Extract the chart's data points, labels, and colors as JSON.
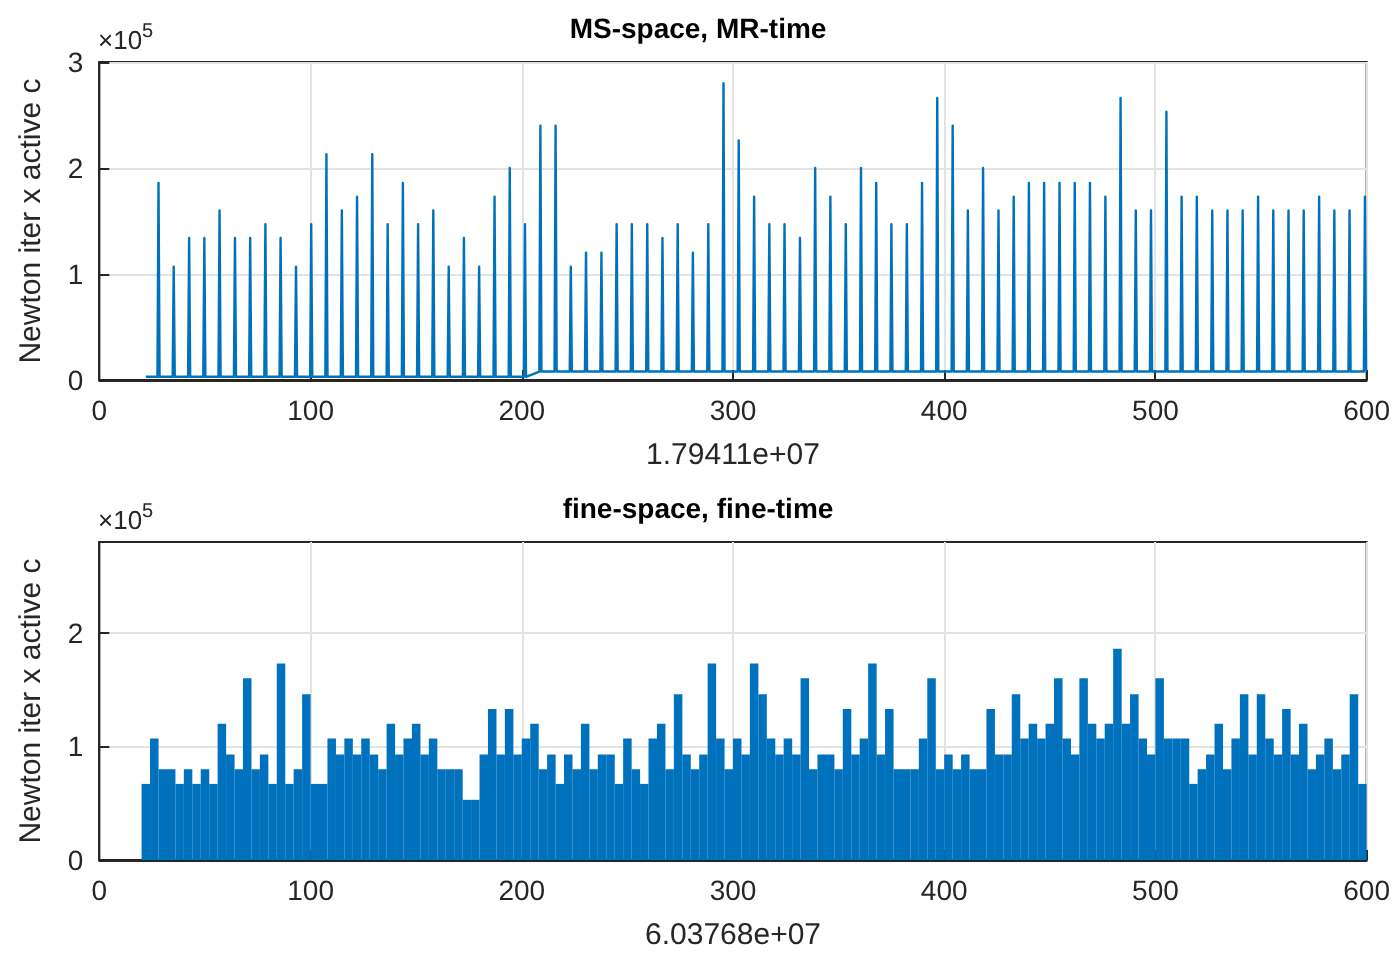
{
  "chart_data": [
    {
      "type": "line",
      "title": "MS-space, MR-time",
      "xlabel": "1.79411e+07",
      "ylabel": "Newton iter x active c",
      "annotations": [
        "×10$^{5}$"
      ],
      "color": "#0072bd",
      "marker": "none",
      "grid": true,
      "xlim": [
        0,
        600
      ],
      "xticks": [
        0,
        100,
        200,
        300,
        400,
        500,
        600
      ],
      "ylim": [
        0,
        3
      ],
      "yticks": [
        0,
        1,
        2,
        3
      ],
      "x": [
        22,
        27.5,
        28,
        28.5,
        34.7,
        35.2,
        35.7,
        42,
        42.5,
        43,
        49.2,
        49.7,
        50.2,
        56.4,
        56.9,
        57.4,
        63.7,
        64.2,
        64.7,
        70.9,
        71.4,
        71.9,
        78.1,
        78.6,
        79.1,
        85.3,
        85.8,
        86.3,
        92.6,
        93.1,
        93.6,
        99.8,
        100.3,
        100.8,
        107,
        107.5,
        108,
        114.3,
        114.8,
        115.3,
        121.5,
        122,
        122.5,
        128.7,
        129.2,
        129.7,
        136,
        136.5,
        137,
        143.2,
        143.7,
        144.2,
        150.4,
        150.9,
        151.4,
        157.6,
        158.1,
        158.6,
        164.9,
        165.4,
        165.9,
        172.1,
        172.6,
        173.1,
        179.3,
        179.8,
        180.3,
        186.6,
        187.1,
        187.6,
        193.8,
        194.3,
        194.8,
        201,
        201.5,
        202,
        208.3,
        208.8,
        209.3,
        215.5,
        216,
        216.5,
        222.7,
        223.2,
        223.7,
        229.9,
        230.4,
        230.9,
        237.2,
        237.7,
        238.2,
        244.4,
        244.9,
        245.4,
        251.6,
        252.1,
        252.6,
        258.9,
        259.4,
        259.9,
        266.1,
        266.6,
        267.1,
        273.3,
        273.8,
        274.3,
        280.5,
        281,
        281.5,
        287.8,
        288.3,
        288.8,
        295,
        295.5,
        296,
        302.2,
        302.7,
        303.2,
        309.5,
        310,
        310.5,
        316.7,
        317.2,
        317.7,
        323.9,
        324.4,
        324.9,
        331.2,
        331.7,
        332.2,
        338.4,
        338.9,
        339.4,
        345.6,
        346.1,
        346.6,
        352.9,
        353.4,
        353.9,
        360.1,
        360.6,
        361.1,
        367.3,
        367.8,
        368.3,
        374.5,
        375,
        375.5,
        381.8,
        382.3,
        382.8,
        389,
        389.5,
        390,
        396.2,
        396.7,
        397.2,
        403.5,
        404,
        404.5,
        410.7,
        411.2,
        411.7,
        417.9,
        418.4,
        418.9,
        425.2,
        425.7,
        426.2,
        432.4,
        432.9,
        433.4,
        439.6,
        440.1,
        440.6,
        446.8,
        447.3,
        447.8,
        454.1,
        454.6,
        455.1,
        461.3,
        461.8,
        462.3,
        468.5,
        469,
        469.5,
        475.8,
        476.3,
        476.8,
        483,
        483.5,
        484,
        490.2,
        490.7,
        491.2,
        497.4,
        497.9,
        498.4,
        504.7,
        505.2,
        505.7,
        511.9,
        512.4,
        512.9,
        519.1,
        519.6,
        520.1,
        526.4,
        526.9,
        527.4,
        533.6,
        534.1,
        534.6,
        540.8,
        541.3,
        541.8,
        548.1,
        548.6,
        549.1,
        555.3,
        555.8,
        556.3,
        562.5,
        563,
        563.5,
        569.7,
        570.2,
        570.7,
        577,
        577.5,
        578,
        584.2,
        584.7,
        585.2,
        591.4,
        591.9,
        592.4,
        598.7,
        599.2,
        599.7
      ],
      "values": [
        0.03,
        0.03,
        1.86,
        0.03,
        0.03,
        1.07,
        0.03,
        0.03,
        1.34,
        0.03,
        0.03,
        1.34,
        0.03,
        0.03,
        1.6,
        0.03,
        0.03,
        1.34,
        0.03,
        0.03,
        1.34,
        0.03,
        0.03,
        1.47,
        0.03,
        0.03,
        1.34,
        0.03,
        0.03,
        1.07,
        0.03,
        0.03,
        1.47,
        0.03,
        0.03,
        2.13,
        0.03,
        0.03,
        1.6,
        0.03,
        0.03,
        1.73,
        0.03,
        0.03,
        2.13,
        0.03,
        0.03,
        1.47,
        0.03,
        0.03,
        1.86,
        0.03,
        0.03,
        1.47,
        0.03,
        0.03,
        1.6,
        0.03,
        0.03,
        1.07,
        0.03,
        0.03,
        1.34,
        0.03,
        0.03,
        1.07,
        0.03,
        0.03,
        1.73,
        0.03,
        0.03,
        2.0,
        0.03,
        0.03,
        1.47,
        0.03,
        0.08,
        2.4,
        0.08,
        0.08,
        2.4,
        0.08,
        0.08,
        1.07,
        0.08,
        0.08,
        1.2,
        0.08,
        0.08,
        1.2,
        0.08,
        0.08,
        1.47,
        0.08,
        0.08,
        1.47,
        0.08,
        0.08,
        1.47,
        0.08,
        0.08,
        1.34,
        0.08,
        0.08,
        1.47,
        0.08,
        0.08,
        1.2,
        0.08,
        0.08,
        1.47,
        0.08,
        0.08,
        2.8,
        0.08,
        0.08,
        2.26,
        0.08,
        0.08,
        1.73,
        0.08,
        0.08,
        1.47,
        0.08,
        0.08,
        1.47,
        0.08,
        0.08,
        1.34,
        0.08,
        0.08,
        2.0,
        0.08,
        0.08,
        1.73,
        0.08,
        0.08,
        1.47,
        0.08,
        0.08,
        2.0,
        0.08,
        0.08,
        1.86,
        0.08,
        0.08,
        1.47,
        0.08,
        0.08,
        1.47,
        0.08,
        0.08,
        1.86,
        0.08,
        0.08,
        2.66,
        0.08,
        0.08,
        2.4,
        0.08,
        0.08,
        1.6,
        0.08,
        0.08,
        2.0,
        0.08,
        0.08,
        1.6,
        0.08,
        0.08,
        1.73,
        0.08,
        0.08,
        1.86,
        0.08,
        0.08,
        1.86,
        0.08,
        0.08,
        1.86,
        0.08,
        0.08,
        1.86,
        0.08,
        0.08,
        1.86,
        0.08,
        0.08,
        1.73,
        0.08,
        0.08,
        2.66,
        0.08,
        0.08,
        1.6,
        0.08,
        0.08,
        1.6,
        0.08,
        0.08,
        2.53,
        0.08,
        0.08,
        1.73,
        0.08,
        0.08,
        1.73,
        0.08,
        0.08,
        1.6,
        0.08,
        0.08,
        1.6,
        0.08,
        0.08,
        1.6,
        0.08,
        0.08,
        1.73,
        0.08,
        0.08,
        1.6,
        0.08,
        0.08,
        1.6,
        0.08,
        0.08,
        1.6,
        0.08,
        0.08,
        1.73,
        0.08,
        0.08,
        1.6,
        0.08,
        0.08,
        1.6,
        0.08,
        0.08,
        1.73,
        0.08
      ]
    },
    {
      "type": "bar",
      "title": "fine-space, fine-time",
      "xlabel": "6.03768e+07",
      "ylabel": "Newton iter x active c",
      "annotations": [
        "×10$^{5}$"
      ],
      "color": "#0072bd",
      "grid": true,
      "xlim": [
        0,
        600
      ],
      "xticks": [
        0,
        100,
        200,
        300,
        400,
        500,
        600
      ],
      "ylim": [
        0,
        2.8
      ],
      "yticks": [
        0,
        1,
        2
      ],
      "x": [
        22,
        26,
        30,
        34,
        38,
        42,
        46,
        50,
        54,
        58,
        62,
        66,
        70,
        74,
        78,
        82,
        86,
        90,
        94,
        98,
        102,
        106,
        110,
        114,
        118,
        122,
        126,
        130,
        134,
        138,
        142,
        146,
        150,
        154,
        158,
        162,
        166,
        170,
        174,
        178,
        182,
        186,
        190,
        194,
        198,
        202,
        206,
        210,
        214,
        218,
        222,
        226,
        230,
        234,
        238,
        242,
        246,
        250,
        254,
        258,
        262,
        266,
        270,
        274,
        278,
        282,
        286,
        290,
        294,
        298,
        302,
        306,
        310,
        314,
        318,
        322,
        326,
        330,
        334,
        338,
        342,
        346,
        350,
        354,
        358,
        362,
        366,
        370,
        374,
        378,
        382,
        386,
        390,
        394,
        398,
        402,
        406,
        410,
        414,
        418,
        422,
        426,
        430,
        434,
        438,
        442,
        446,
        450,
        454,
        458,
        462,
        466,
        470,
        474,
        478,
        482,
        486,
        490,
        494,
        498,
        502,
        506,
        510,
        514,
        518,
        522,
        526,
        530,
        534,
        538,
        542,
        546,
        550,
        554,
        558,
        562,
        566,
        570,
        574,
        578,
        582,
        586,
        590,
        594,
        598
      ],
      "values": [
        0.67,
        1.07,
        0.8,
        0.8,
        0.67,
        0.8,
        0.67,
        0.8,
        0.67,
        1.2,
        0.93,
        0.8,
        1.6,
        0.8,
        0.93,
        0.67,
        1.73,
        0.67,
        0.8,
        1.46,
        0.67,
        0.67,
        1.07,
        0.93,
        1.07,
        0.93,
        1.07,
        0.93,
        0.8,
        1.2,
        0.93,
        1.07,
        1.2,
        0.93,
        1.07,
        0.8,
        0.8,
        0.8,
        0.53,
        0.53,
        0.93,
        1.33,
        0.93,
        1.33,
        0.93,
        1.07,
        1.2,
        0.8,
        0.93,
        0.67,
        0.93,
        0.8,
        1.2,
        0.8,
        0.93,
        0.93,
        0.67,
        1.07,
        0.8,
        0.67,
        1.07,
        1.2,
        0.8,
        1.46,
        0.93,
        0.8,
        0.93,
        1.73,
        1.07,
        0.8,
        1.07,
        0.93,
        1.73,
        1.46,
        1.07,
        0.93,
        1.07,
        0.93,
        1.6,
        0.8,
        0.93,
        0.93,
        0.8,
        1.33,
        0.93,
        1.07,
        1.73,
        0.93,
        1.33,
        0.8,
        0.8,
        0.8,
        1.07,
        1.6,
        0.8,
        0.93,
        0.8,
        0.93,
        0.8,
        0.8,
        1.33,
        0.93,
        0.93,
        1.46,
        1.07,
        1.2,
        1.07,
        1.2,
        1.6,
        1.07,
        0.93,
        1.6,
        1.2,
        1.07,
        1.2,
        1.86,
        1.2,
        1.46,
        1.07,
        0.93,
        1.6,
        1.07,
        1.07,
        1.07,
        0.67,
        0.8,
        0.93,
        1.2,
        0.8,
        1.07,
        1.46,
        0.93,
        1.46,
        1.07,
        0.93,
        1.33,
        0.93,
        1.2,
        0.8,
        0.93,
        1.07,
        0.8,
        0.93,
        1.46,
        0.67
      ]
    }
  ]
}
